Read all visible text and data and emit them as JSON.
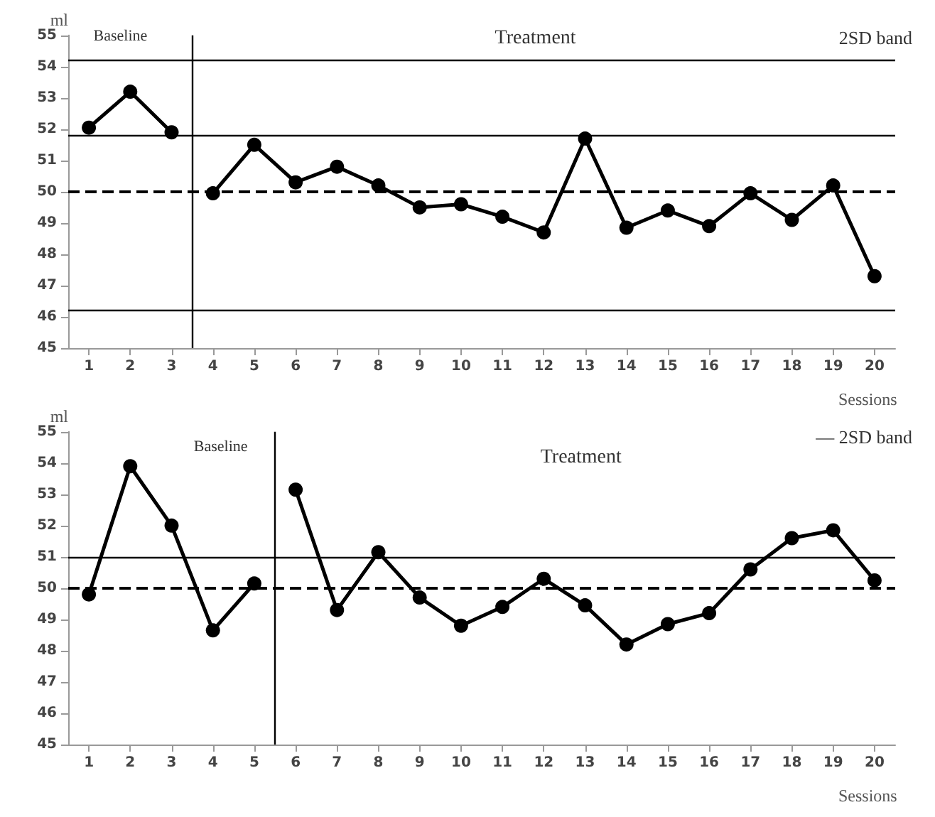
{
  "chart_data": [
    {
      "type": "line",
      "xlabel": "Sessions",
      "ylabel": "ml",
      "xlim": [
        0.5,
        20.5
      ],
      "xticks": [
        1,
        2,
        3,
        4,
        5,
        6,
        7,
        8,
        9,
        10,
        11,
        12,
        13,
        14,
        15,
        16,
        17,
        18,
        19,
        20
      ],
      "ylim": [
        45,
        55
      ],
      "yticks": [
        45,
        46,
        47,
        48,
        49,
        50,
        51,
        52,
        53,
        54,
        55
      ],
      "grid": false,
      "marker": "circle",
      "line_style": "solid",
      "series": [
        {
          "color": "#000000",
          "x": [
            1,
            2,
            3
          ],
          "values": [
            52.05,
            53.2,
            51.9
          ]
        },
        {
          "color": "#000000",
          "x": [
            4,
            5,
            6,
            7,
            8,
            9,
            10,
            11,
            12,
            13,
            14,
            15,
            16,
            17,
            18,
            19,
            20
          ],
          "values": [
            49.95,
            51.5,
            50.3,
            50.8,
            50.2,
            49.5,
            49.6,
            49.2,
            48.7,
            51.7,
            48.85,
            49.4,
            48.9,
            49.95,
            49.1,
            50.2,
            47.3
          ]
        }
      ],
      "ref_lines": [
        {
          "axis": "x",
          "value": 3.5,
          "color": "#000000",
          "line_style": "solid"
        },
        {
          "axis": "y",
          "value": 54.2,
          "color": "#000000",
          "line_style": "solid"
        },
        {
          "axis": "y",
          "value": 51.8,
          "color": "#000000",
          "line_style": "solid"
        },
        {
          "axis": "y",
          "value": 46.2,
          "color": "#000000",
          "line_style": "solid"
        },
        {
          "axis": "y",
          "value": 50,
          "color": "#000000",
          "line_style": "dashed"
        }
      ],
      "annotations": [
        "Baseline",
        "Treatment",
        "2SD band"
      ]
    },
    {
      "type": "line",
      "xlabel": "Sessions",
      "ylabel": "ml",
      "xlim": [
        0.5,
        20.5
      ],
      "xticks": [
        1,
        2,
        3,
        4,
        5,
        6,
        7,
        8,
        9,
        10,
        11,
        12,
        13,
        14,
        15,
        16,
        17,
        18,
        19,
        20
      ],
      "ylim": [
        45,
        55
      ],
      "yticks": [
        45,
        46,
        47,
        48,
        49,
        50,
        51,
        52,
        53,
        54,
        55
      ],
      "grid": false,
      "marker": "circle",
      "line_style": "solid",
      "series": [
        {
          "color": "#000000",
          "x": [
            1,
            2,
            3,
            4,
            5
          ],
          "values": [
            49.8,
            53.9,
            52.0,
            48.65,
            50.15
          ]
        },
        {
          "color": "#000000",
          "x": [
            6,
            7,
            8,
            9,
            10,
            11,
            12,
            13,
            14,
            15,
            16,
            17,
            18,
            19,
            20
          ],
          "values": [
            53.15,
            49.3,
            51.15,
            49.7,
            48.8,
            49.4,
            50.3,
            49.45,
            48.2,
            48.85,
            49.2,
            50.6,
            51.6,
            51.85,
            50.25
          ]
        }
      ],
      "ref_lines": [
        {
          "axis": "x",
          "value": 5.5,
          "color": "#000000",
          "line_style": "solid"
        },
        {
          "axis": "y",
          "value": 51,
          "color": "#000000",
          "line_style": "solid"
        },
        {
          "axis": "y",
          "value": 50,
          "color": "#000000",
          "line_style": "dashed"
        }
      ],
      "annotations": [
        "Baseline",
        "Treatment",
        "— 2SD band"
      ]
    }
  ]
}
